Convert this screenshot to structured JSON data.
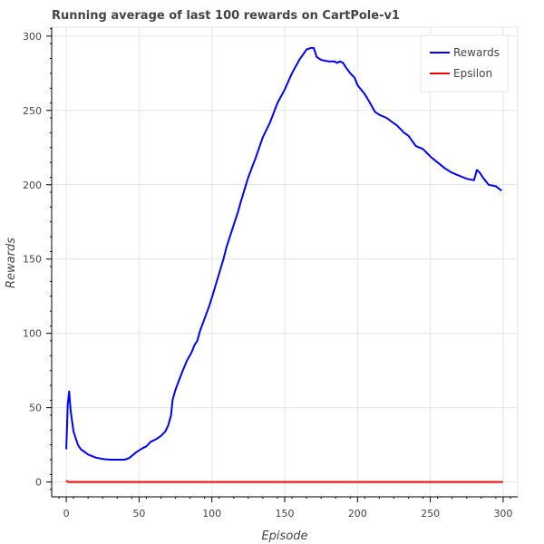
{
  "chart_data": {
    "type": "line",
    "title": "Running average of last 100 rewards on CartPole-v1",
    "xlabel": "Episode",
    "ylabel": "Rewards",
    "xlim": [
      -10,
      310
    ],
    "ylim": [
      -10,
      306
    ],
    "xticks": [
      0,
      50,
      100,
      150,
      200,
      250,
      300
    ],
    "yticks": [
      0,
      50,
      100,
      150,
      200,
      250,
      300
    ],
    "grid": true,
    "legend_position": "top-right",
    "series": [
      {
        "name": "Rewards",
        "color": "#0000ff",
        "x": [
          0,
          1,
          2,
          3,
          5,
          8,
          10,
          15,
          20,
          25,
          30,
          35,
          40,
          43,
          45,
          48,
          52,
          55,
          58,
          62,
          65,
          68,
          70,
          72,
          73,
          75,
          78,
          80,
          83,
          86,
          88,
          90,
          92,
          95,
          98,
          100,
          104,
          108,
          110,
          114,
          118,
          120,
          125,
          130,
          135,
          140,
          145,
          150,
          155,
          160,
          165,
          168,
          170,
          172,
          175,
          180,
          184,
          186,
          188,
          190,
          192,
          195,
          198,
          200,
          205,
          208,
          212,
          215,
          220,
          224,
          227,
          232,
          235,
          240,
          245,
          250,
          255,
          260,
          265,
          270,
          275,
          280,
          282,
          284,
          286,
          290,
          295,
          299
        ],
        "y": [
          22,
          52,
          61,
          48,
          34,
          25,
          22,
          18.5,
          16.5,
          15.5,
          15,
          15,
          15,
          16,
          17.5,
          20,
          22.5,
          24,
          27,
          29,
          31,
          34,
          38,
          45,
          55,
          62,
          70,
          75,
          82,
          87,
          92,
          95,
          102,
          110,
          118,
          124,
          137,
          150,
          158,
          170,
          182,
          189,
          205,
          218,
          232,
          242,
          255,
          264,
          275,
          284,
          291,
          292,
          292,
          286,
          284,
          283,
          283,
          282,
          283,
          282,
          279,
          275,
          272,
          267,
          261,
          256,
          249,
          247,
          245,
          242,
          240,
          235,
          233,
          226,
          224,
          219,
          215,
          211,
          208,
          206,
          204,
          203,
          210,
          208,
          205,
          200,
          199,
          196
        ]
      },
      {
        "name": "Epsilon",
        "color": "#ff0000",
        "x": [
          0,
          1,
          2,
          300
        ],
        "y": [
          1,
          0.1,
          0.01,
          0.01
        ]
      }
    ]
  }
}
